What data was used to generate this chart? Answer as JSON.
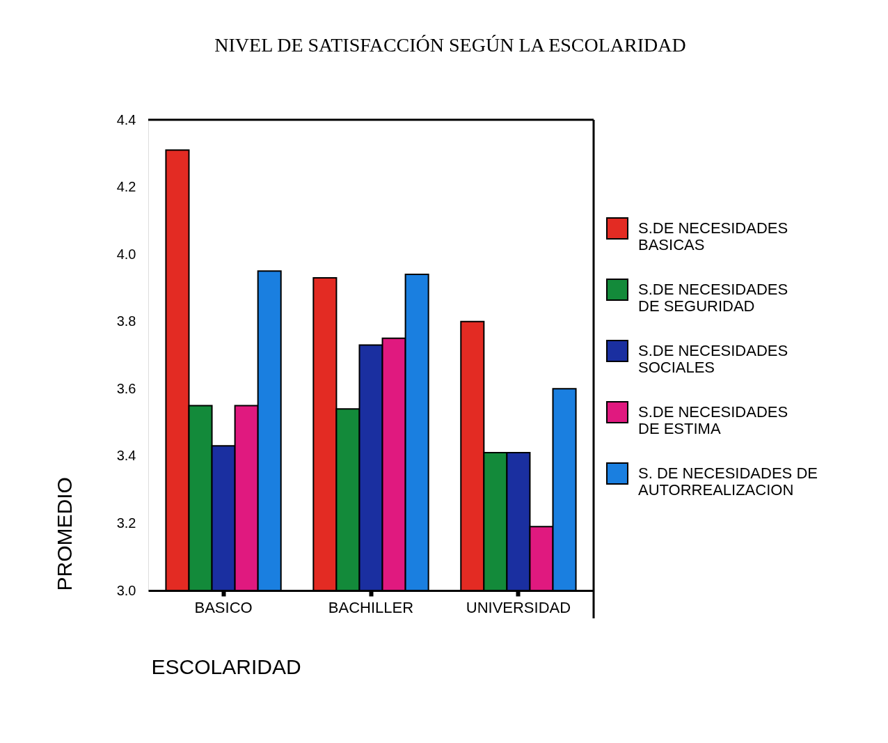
{
  "chart_data": {
    "type": "bar",
    "title": "NIVEL DE SATISFACCIÓN SEGÚN LA ESCOLARIDAD",
    "xlabel": "ESCOLARIDAD",
    "ylabel": "PROMEDIO",
    "categories": [
      "BASICO",
      "BACHILLER",
      "UNIVERSIDAD"
    ],
    "series": [
      {
        "name": "S.DE NECESIDADES\nBASICAS",
        "color": "#e32b23",
        "values": [
          4.31,
          3.93,
          3.8
        ]
      },
      {
        "name": "S.DE NECESIDADES\nDE SEGURIDAD",
        "color": "#138a3a",
        "values": [
          3.55,
          3.54,
          3.41
        ]
      },
      {
        "name": "S.DE NECESIDADES\nSOCIALES",
        "color": "#1a2fa0",
        "values": [
          3.43,
          3.73,
          3.41
        ]
      },
      {
        "name": "S.DE NECESIDADES\nDE ESTIMA",
        "color": "#e0197f",
        "values": [
          3.55,
          3.75,
          3.19
        ]
      },
      {
        "name": "S. DE NECESIDADES DE\nAUTORREALIZACION",
        "color": "#1a7fe0",
        "values": [
          3.95,
          3.94,
          3.6
        ]
      }
    ],
    "ylim": [
      3.0,
      4.4
    ],
    "yticks": [
      {
        "value": 3.0,
        "label": "3.0"
      },
      3.2,
      3.4,
      3.6,
      3.8,
      {
        "value": 4.0,
        "label": "4.0"
      },
      4.2,
      4.4
    ],
    "grid": false,
    "legend": "right"
  }
}
